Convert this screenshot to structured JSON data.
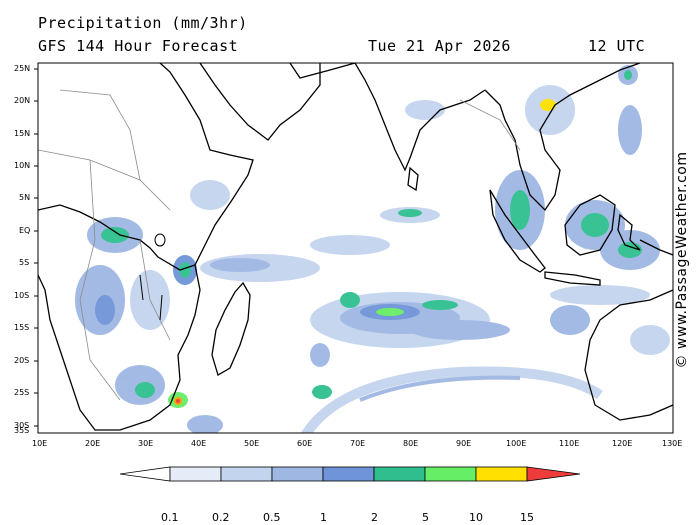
{
  "header": {
    "title_line1": "Precipitation (mm/3hr)",
    "title_line2": "GFS 144 Hour Forecast",
    "date": "Tue 21 Apr 2026",
    "time": "12 UTC"
  },
  "map": {
    "lat_labels": [
      "25N",
      "20N",
      "15N",
      "10N",
      "5N",
      "EQ",
      "5S",
      "10S",
      "15S",
      "20S",
      "25S",
      "30S",
      "35S"
    ],
    "lon_labels": [
      "10E",
      "20E",
      "30E",
      "40E",
      "50E",
      "60E",
      "70E",
      "80E",
      "90E",
      "100E",
      "110E",
      "120E",
      "130E"
    ],
    "region": "Indian Ocean",
    "lat_range": [
      -35,
      25
    ],
    "lon_range": [
      10,
      130
    ]
  },
  "colorbar": {
    "labels": [
      "0.1",
      "0.2",
      "0.5",
      "1",
      "2",
      "5",
      "10",
      "15"
    ],
    "colors": [
      "#e6ecf7",
      "#c3d4ef",
      "#9fb8e3",
      "#6f94d8",
      "#2fbf8f",
      "#66ee66",
      "#ffe000",
      "#ff9a00",
      "#ee3c3c"
    ]
  },
  "credit": "© www.PassageWeather.com"
}
